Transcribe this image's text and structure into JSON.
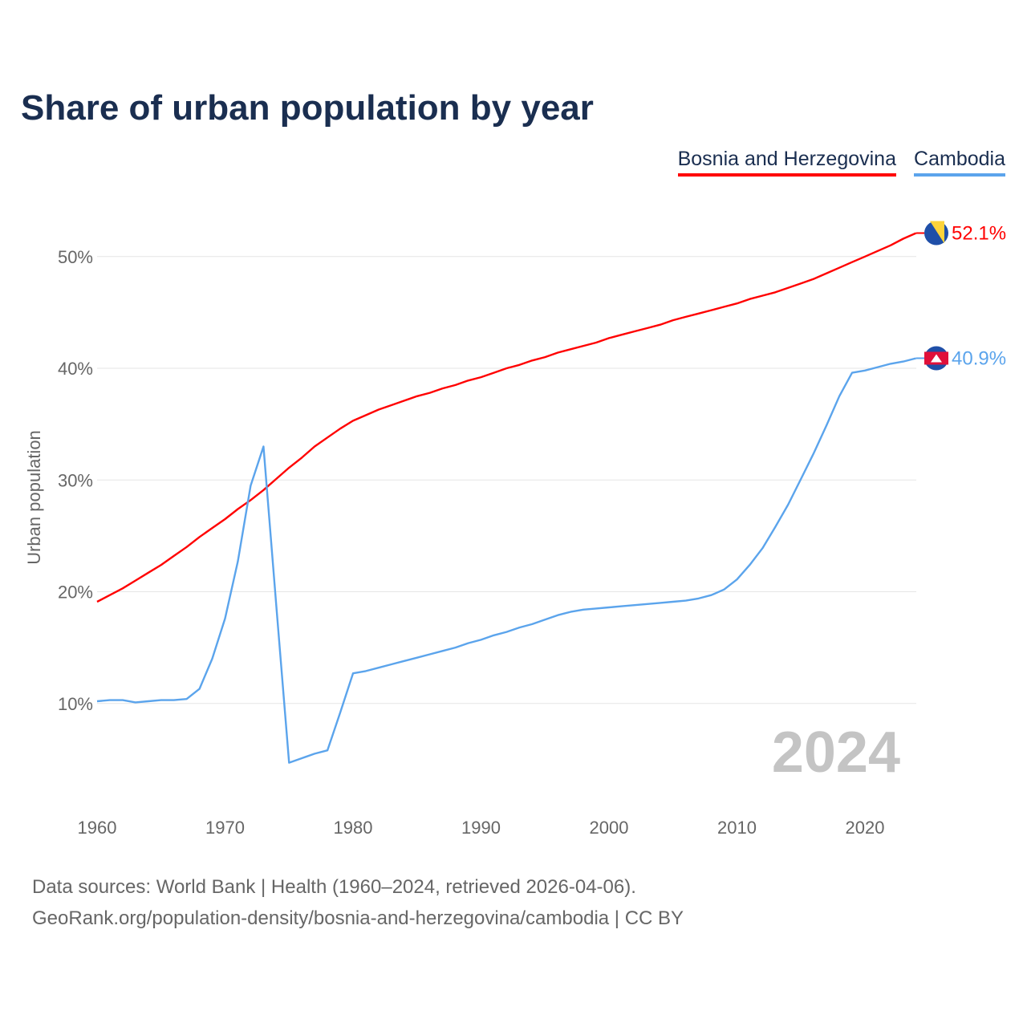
{
  "title": "Share of urban population by year",
  "legend": [
    {
      "name": "Bosnia and Herzegovina",
      "color": "#ff0000"
    },
    {
      "name": "Cambodia",
      "color": "#5ba4ec"
    }
  ],
  "year_watermark": "2024",
  "source_line1": "Data sources: World Bank | Health (1960–2024, retrieved 2026-04-06).",
  "source_line2": "GeoRank.org/population-density/bosnia-and-herzegovina/cambodia | CC BY",
  "chart_data": {
    "type": "line",
    "title": "Share of urban population by year",
    "xlabel": "",
    "ylabel": "Urban population",
    "xlim": [
      1960,
      2024
    ],
    "ylim": [
      0,
      55
    ],
    "xticks": [
      1960,
      1970,
      1980,
      1990,
      2000,
      2010,
      2020
    ],
    "yticks": [
      {
        "v": 10,
        "label": "10%"
      },
      {
        "v": 20,
        "label": "20%"
      },
      {
        "v": 30,
        "label": "30%"
      },
      {
        "v": 40,
        "label": "40%"
      },
      {
        "v": 50,
        "label": "50%"
      }
    ],
    "grid": true,
    "legend_placement": "top-right",
    "x_start": 1960,
    "series": [
      {
        "name": "Bosnia and Herzegovina",
        "color": "#ff0000",
        "end_label": "52.1%",
        "values": [
          19.1,
          19.7,
          20.3,
          21.0,
          21.7,
          22.4,
          23.2,
          24.0,
          24.9,
          25.7,
          26.5,
          27.4,
          28.2,
          29.1,
          30.1,
          31.1,
          32.0,
          33.0,
          33.8,
          34.6,
          35.3,
          35.8,
          36.3,
          36.7,
          37.1,
          37.5,
          37.8,
          38.2,
          38.5,
          38.9,
          39.2,
          39.6,
          40.0,
          40.3,
          40.7,
          41.0,
          41.4,
          41.7,
          42.0,
          42.3,
          42.7,
          43.0,
          43.3,
          43.6,
          43.9,
          44.3,
          44.6,
          44.9,
          45.2,
          45.5,
          45.8,
          46.2,
          46.5,
          46.8,
          47.2,
          47.6,
          48.0,
          48.5,
          49.0,
          49.5,
          50.0,
          50.5,
          51.0,
          51.6,
          52.1
        ]
      },
      {
        "name": "Cambodia",
        "color": "#5ba4ec",
        "end_label": "40.9%",
        "values": [
          10.2,
          10.3,
          10.3,
          10.1,
          10.2,
          10.3,
          10.3,
          10.4,
          11.3,
          14.0,
          17.6,
          22.7,
          29.5,
          33.0,
          18.8,
          4.7,
          5.1,
          5.5,
          5.8,
          9.2,
          12.7,
          12.9,
          13.2,
          13.5,
          13.8,
          14.1,
          14.4,
          14.7,
          15.0,
          15.4,
          15.7,
          16.1,
          16.4,
          16.8,
          17.1,
          17.5,
          17.9,
          18.2,
          18.4,
          18.5,
          18.6,
          18.7,
          18.8,
          18.9,
          19.0,
          19.1,
          19.2,
          19.4,
          19.7,
          20.2,
          21.1,
          22.4,
          23.9,
          25.8,
          27.8,
          30.1,
          32.4,
          34.9,
          37.5,
          39.6,
          39.8,
          40.1,
          40.4,
          40.6,
          40.9
        ]
      }
    ]
  }
}
